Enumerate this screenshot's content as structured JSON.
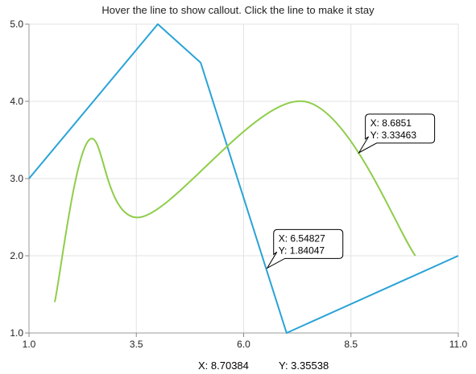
{
  "title": "Hover the line to show callout. Click the line to make it stay",
  "readout": {
    "x": "X: 8.70384",
    "y": "Y: 3.35538"
  },
  "chart_data": {
    "type": "line",
    "xlim": [
      1.0,
      11.0
    ],
    "ylim": [
      1.0,
      5.0
    ],
    "x_ticks": [
      "1.0",
      "3.5",
      "6.0",
      "8.5",
      "11.0"
    ],
    "y_ticks": [
      "1.0",
      "2.0",
      "3.0",
      "4.0",
      "5.0"
    ],
    "grid": true,
    "legend": "none",
    "series": [
      {
        "color": "#29a3d6",
        "x": [
          1.0,
          4.0,
          5.0,
          7.0,
          11.0
        ],
        "y": [
          3.0,
          5.0,
          4.5,
          1.0,
          2.0
        ]
      },
      {
        "color": "#8fcd4a",
        "smooth": true,
        "x": [
          1.6,
          2.4,
          3.6,
          7.4,
          10.0
        ],
        "y": [
          1.4,
          3.5,
          2.5,
          4.0,
          2.0
        ]
      }
    ],
    "callouts": [
      {
        "x_text": "X: 8.6851",
        "y_text": "Y: 3.33463",
        "x": 8.6851,
        "y": 3.33463
      },
      {
        "x_text": "X: 6.54827",
        "y_text": "Y: 1.84047",
        "x": 6.54827,
        "y": 1.84047
      }
    ]
  }
}
